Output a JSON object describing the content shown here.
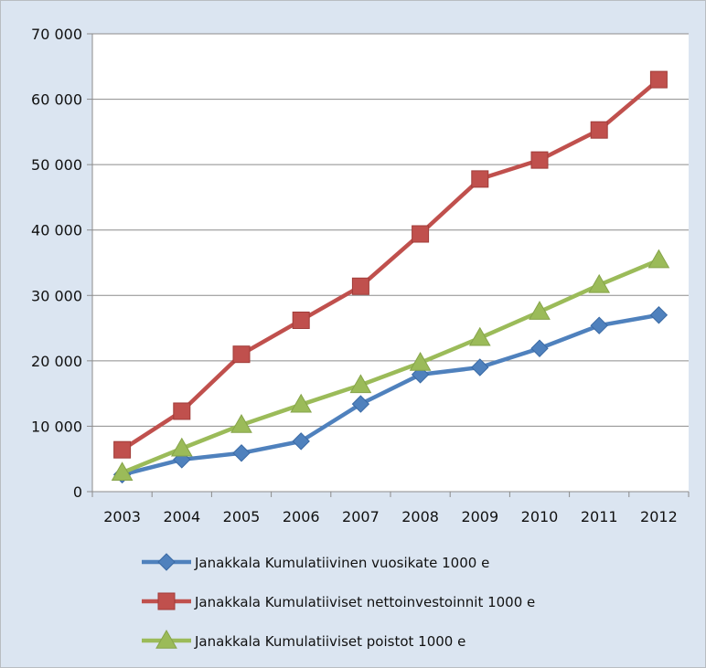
{
  "chart_data": {
    "type": "line",
    "x": [
      "2003",
      "2004",
      "2005",
      "2006",
      "2007",
      "2008",
      "2009",
      "2010",
      "2011",
      "2012"
    ],
    "ylim": [
      0,
      70000
    ],
    "yticks": [
      0,
      10000,
      20000,
      30000,
      40000,
      50000,
      60000,
      70000
    ],
    "ytick_labels": [
      "0",
      "10 000",
      "20 000",
      "30 000",
      "40 000",
      "50 000",
      "60 000",
      "70 000"
    ],
    "grid": true,
    "legend_position": "bottom",
    "series": [
      {
        "name": "Janakkala Kumulatiivinen vuosikate 1000 e",
        "color": "#4f81bd",
        "marker": "diamond",
        "values": [
          2600,
          4900,
          5900,
          7700,
          13400,
          17900,
          19000,
          21900,
          25400,
          27000
        ]
      },
      {
        "name": "Janakkala Kumulatiiviset nettoinvestoinnit 1000 e",
        "color": "#c0504d",
        "marker": "square",
        "values": [
          6400,
          12300,
          21000,
          26200,
          31400,
          39400,
          47800,
          50700,
          55300,
          63000
        ]
      },
      {
        "name": "Janakkala Kumulatiiviset poistot 1000 e",
        "color": "#9bbb59",
        "marker": "triangle",
        "values": [
          2900,
          6600,
          10200,
          13300,
          16300,
          19700,
          23500,
          27500,
          31600,
          35400
        ]
      }
    ]
  }
}
